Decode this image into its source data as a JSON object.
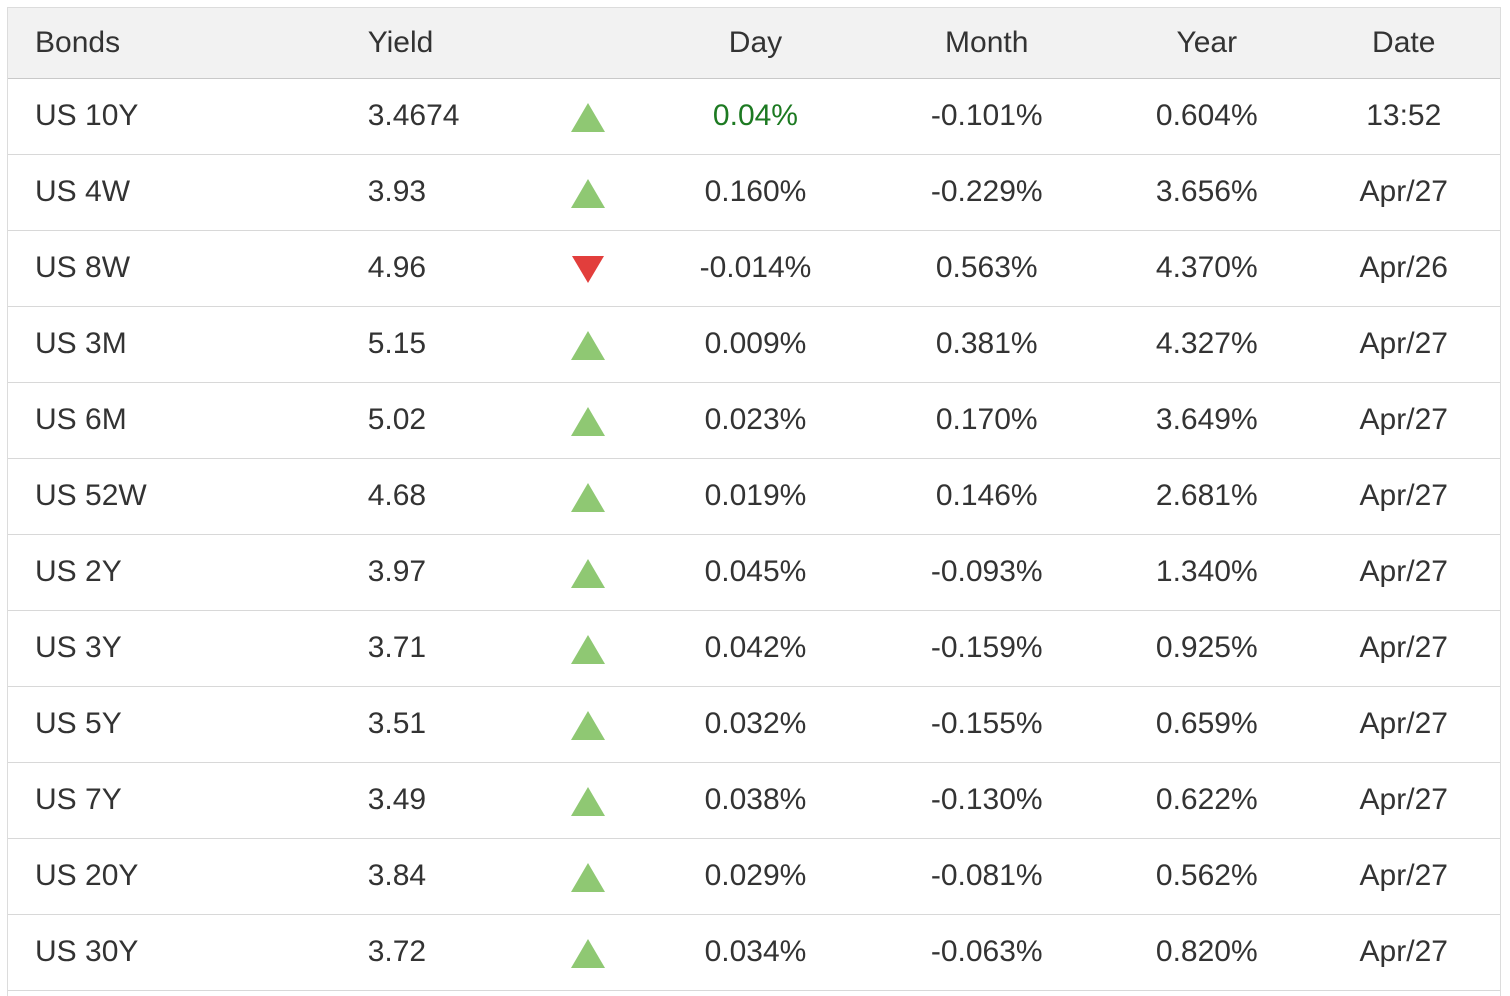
{
  "colors": {
    "up_arrow_green": "#8fc873",
    "down_arrow_red": "#e23e3c",
    "day_positive_text_green": "#1d7a22",
    "header_background": "#f2f2f2",
    "row_border": "#d8d8d8",
    "text": "#333333"
  },
  "table": {
    "columns": [
      "Bonds",
      "Yield",
      "",
      "Day",
      "Month",
      "Year",
      "Date"
    ],
    "rows": [
      {
        "bond": "US 10Y",
        "yield": "3.4674",
        "direction": "up",
        "day": "0.04%",
        "day_highlight": true,
        "month": "-0.101%",
        "year": "0.604%",
        "date": "13:52"
      },
      {
        "bond": "US 4W",
        "yield": "3.93",
        "direction": "up",
        "day": "0.160%",
        "day_highlight": false,
        "month": "-0.229%",
        "year": "3.656%",
        "date": "Apr/27"
      },
      {
        "bond": "US 8W",
        "yield": "4.96",
        "direction": "down",
        "day": "-0.014%",
        "day_highlight": false,
        "month": "0.563%",
        "year": "4.370%",
        "date": "Apr/26"
      },
      {
        "bond": "US 3M",
        "yield": "5.15",
        "direction": "up",
        "day": "0.009%",
        "day_highlight": false,
        "month": "0.381%",
        "year": "4.327%",
        "date": "Apr/27"
      },
      {
        "bond": "US 6M",
        "yield": "5.02",
        "direction": "up",
        "day": "0.023%",
        "day_highlight": false,
        "month": "0.170%",
        "year": "3.649%",
        "date": "Apr/27"
      },
      {
        "bond": "US 52W",
        "yield": "4.68",
        "direction": "up",
        "day": "0.019%",
        "day_highlight": false,
        "month": "0.146%",
        "year": "2.681%",
        "date": "Apr/27"
      },
      {
        "bond": "US 2Y",
        "yield": "3.97",
        "direction": "up",
        "day": "0.045%",
        "day_highlight": false,
        "month": "-0.093%",
        "year": "1.340%",
        "date": "Apr/27"
      },
      {
        "bond": "US 3Y",
        "yield": "3.71",
        "direction": "up",
        "day": "0.042%",
        "day_highlight": false,
        "month": "-0.159%",
        "year": "0.925%",
        "date": "Apr/27"
      },
      {
        "bond": "US 5Y",
        "yield": "3.51",
        "direction": "up",
        "day": "0.032%",
        "day_highlight": false,
        "month": "-0.155%",
        "year": "0.659%",
        "date": "Apr/27"
      },
      {
        "bond": "US 7Y",
        "yield": "3.49",
        "direction": "up",
        "day": "0.038%",
        "day_highlight": false,
        "month": "-0.130%",
        "year": "0.622%",
        "date": "Apr/27"
      },
      {
        "bond": "US 20Y",
        "yield": "3.84",
        "direction": "up",
        "day": "0.029%",
        "day_highlight": false,
        "month": "-0.081%",
        "year": "0.562%",
        "date": "Apr/27"
      },
      {
        "bond": "US 30Y",
        "yield": "3.72",
        "direction": "up",
        "day": "0.034%",
        "day_highlight": false,
        "month": "-0.063%",
        "year": "0.820%",
        "date": "Apr/27"
      }
    ]
  }
}
